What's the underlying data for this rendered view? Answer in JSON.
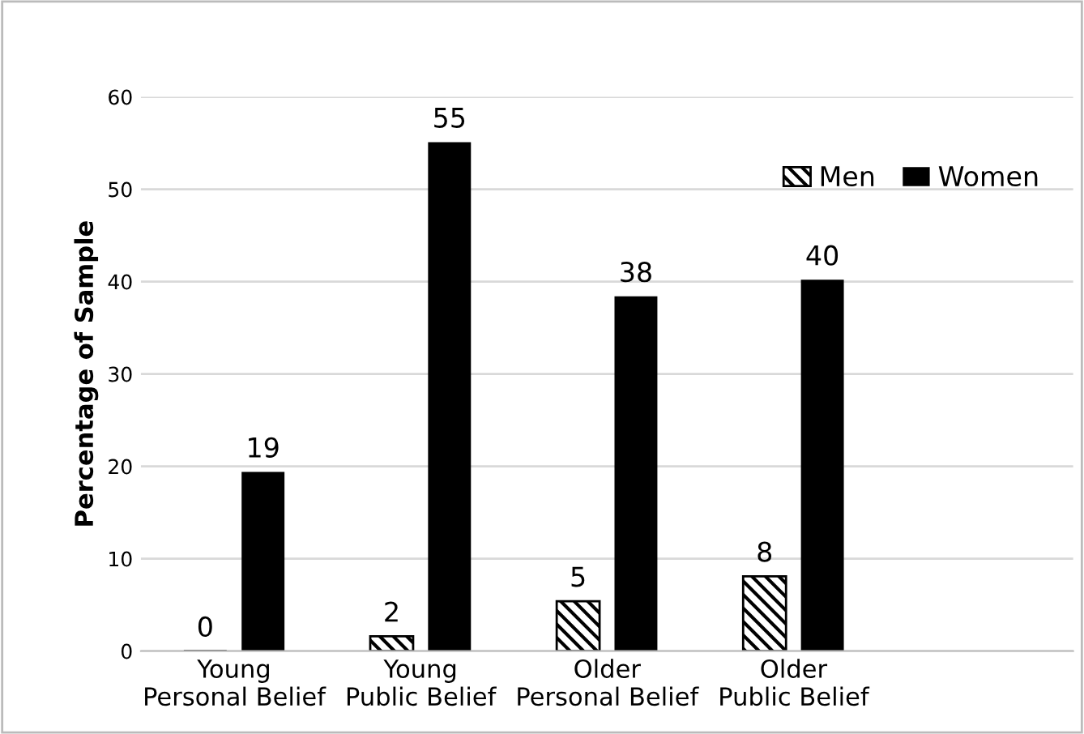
{
  "chart_data": {
    "type": "bar",
    "ylabel": "Percentage of Sample",
    "categories": [
      "Young\nPersonal Belief",
      "Young\nPublic Belief",
      "Older\nPersonal Belief",
      "Older\nPublic Belief",
      null
    ],
    "series": [
      {
        "name": "Men",
        "color": "#000000",
        "values": [
          0,
          1.6,
          5.4,
          8.1,
          null
        ],
        "value_labels": [
          "0",
          "2",
          "5",
          "8",
          null
        ]
      },
      {
        "name": "Women",
        "color": "#000000",
        "values": [
          19.4,
          55.1,
          38.4,
          40.2,
          null
        ],
        "value_labels": [
          "19",
          "55",
          "38",
          "40",
          null
        ]
      }
    ],
    "ylim": [
      0,
      60
    ],
    "yticks": [
      0,
      10,
      20,
      30,
      40,
      50,
      60
    ],
    "grid": "y",
    "legend": "top right"
  }
}
